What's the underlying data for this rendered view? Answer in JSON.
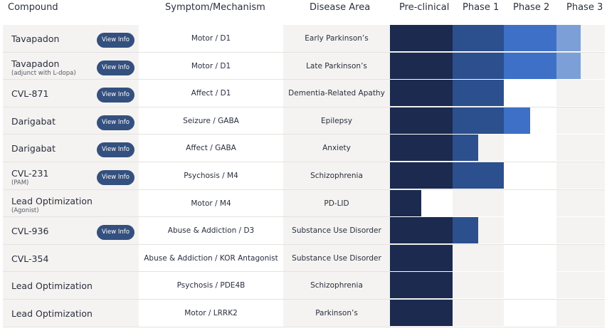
{
  "headers": {
    "compound": "Compound",
    "symptom": "Symptom/Mechanism",
    "disease": "Disease Area",
    "preclinical": "Pre-clinical",
    "phase1": "Phase 1",
    "phase2": "Phase 2",
    "phase3": "Phase 3"
  },
  "view_info_label": "View Info",
  "colors": {
    "preclinical": "#1b2a4e",
    "phase1": "#2c4f8e",
    "phase2": "#3f70c7",
    "phase3": "#7d9fd8",
    "button": "#34507f"
  },
  "rows": [
    {
      "name": "Tavapadon",
      "sub": "",
      "has_view": true,
      "symptom": "Motor / D1",
      "disease": "Early Parkinson’s",
      "progress": 3.5
    },
    {
      "name": "Tavapadon",
      "sub": "(adjunct with L-dopa)",
      "has_view": true,
      "symptom": "Motor / D1",
      "disease": "Late Parkinson’s",
      "progress": 3.5
    },
    {
      "name": "CVL-871",
      "sub": "",
      "has_view": true,
      "symptom": "Affect / D1",
      "disease": "Dementia-Related Apathy",
      "progress": 2.0
    },
    {
      "name": "Darigabat",
      "sub": "",
      "has_view": true,
      "symptom": "Seizure / GABA",
      "disease": "Epilepsy",
      "progress": 2.5
    },
    {
      "name": "Darigabat",
      "sub": "",
      "has_view": true,
      "symptom": "Affect / GABA",
      "disease": "Anxiety",
      "progress": 1.5
    },
    {
      "name": "CVL-231",
      "sub": "(PAM)",
      "has_view": true,
      "symptom": "Psychosis / M4",
      "disease": "Schizophrenia",
      "progress": 2.0
    },
    {
      "name": "Lead Optimization",
      "sub": "(Agonist)",
      "has_view": false,
      "symptom": "Motor / M4",
      "disease": "PD-LID",
      "progress": 0.5
    },
    {
      "name": "CVL-936",
      "sub": "",
      "has_view": true,
      "symptom": "Abuse & Addiction / D3",
      "disease": "Substance Use Disorder",
      "progress": 1.5
    },
    {
      "name": "CVL-354",
      "sub": "",
      "has_view": false,
      "symptom": "Abuse & Addiction / KOR Antagonist",
      "disease": "Substance Use Disorder",
      "progress": 1.0
    },
    {
      "name": "Lead Optimization",
      "sub": "",
      "has_view": false,
      "symptom": "Psychosis / PDE4B",
      "disease": "Schizophrenia",
      "progress": 1.0
    },
    {
      "name": "Lead Optimization",
      "sub": "",
      "has_view": false,
      "symptom": "Motor / LRRK2",
      "disease": "Parkinson’s",
      "progress": 1.0
    }
  ]
}
